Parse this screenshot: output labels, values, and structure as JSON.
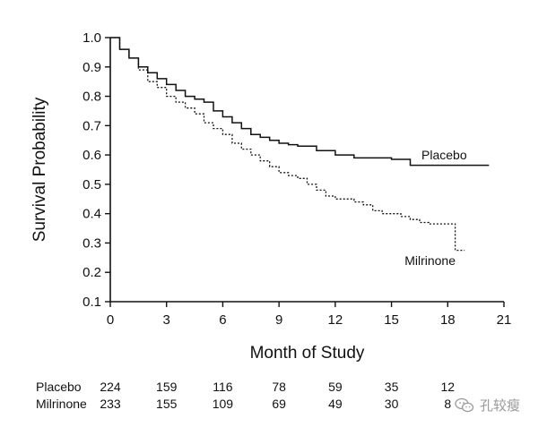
{
  "chart_data": {
    "type": "line",
    "title": "",
    "xlabel": "Month of Study",
    "ylabel": "Survival Probability",
    "xlim": [
      0,
      21
    ],
    "ylim": [
      0.1,
      1.0
    ],
    "x_ticks": [
      "0",
      "3",
      "6",
      "9",
      "12",
      "15",
      "18",
      "21"
    ],
    "y_ticks": [
      "1.0",
      "0.9",
      "0.8",
      "0.7",
      "0.6",
      "0.5",
      "0.4",
      "0.3",
      "0.2",
      "0.1"
    ],
    "series": [
      {
        "name": "Placebo",
        "style": "solid",
        "x": [
          0,
          0.5,
          1,
          1.5,
          2,
          2.5,
          3,
          3.5,
          4,
          4.5,
          5,
          5.5,
          6,
          6.5,
          7,
          7.5,
          8,
          8.5,
          9,
          9.5,
          10,
          11,
          12,
          13,
          14,
          15,
          16,
          17,
          18,
          19,
          20.2
        ],
        "y": [
          1.0,
          0.96,
          0.93,
          0.9,
          0.88,
          0.86,
          0.84,
          0.82,
          0.8,
          0.79,
          0.78,
          0.75,
          0.73,
          0.71,
          0.69,
          0.67,
          0.66,
          0.65,
          0.64,
          0.635,
          0.63,
          0.615,
          0.6,
          0.59,
          0.59,
          0.585,
          0.565,
          0.565,
          0.565,
          0.565,
          0.565
        ]
      },
      {
        "name": "Milrinone",
        "style": "dotted",
        "x": [
          0,
          0.5,
          1,
          1.5,
          2,
          2.5,
          3,
          3.5,
          4,
          4.5,
          5,
          5.5,
          6,
          6.5,
          7,
          7.5,
          8,
          8.5,
          9,
          9.5,
          10,
          10.5,
          11,
          11.5,
          12,
          12.5,
          13,
          13.5,
          14,
          14.5,
          15,
          15.5,
          16,
          16.5,
          17,
          17.5,
          18,
          18.4,
          18.4,
          18.9
        ],
        "y": [
          1.0,
          0.96,
          0.93,
          0.89,
          0.85,
          0.83,
          0.8,
          0.78,
          0.76,
          0.74,
          0.71,
          0.69,
          0.67,
          0.64,
          0.62,
          0.6,
          0.58,
          0.56,
          0.54,
          0.53,
          0.52,
          0.5,
          0.48,
          0.46,
          0.45,
          0.45,
          0.44,
          0.43,
          0.41,
          0.4,
          0.4,
          0.39,
          0.38,
          0.37,
          0.365,
          0.365,
          0.365,
          0.365,
          0.275,
          0.275
        ]
      }
    ],
    "annotations": [
      "Placebo",
      "Milrinone"
    ],
    "risk_table": {
      "rows": [
        {
          "label": "Placebo",
          "values": [
            "224",
            "159",
            "116",
            "78",
            "59",
            "35",
            "12"
          ]
        },
        {
          "label": "Milrinone",
          "values": [
            "233",
            "155",
            "109",
            "69",
            "49",
            "30",
            "8"
          ]
        }
      ]
    },
    "grid": false
  },
  "watermark": {
    "text": "孔较瘦",
    "icon": "wechat-icon",
    "color": "#9a9a9a"
  }
}
